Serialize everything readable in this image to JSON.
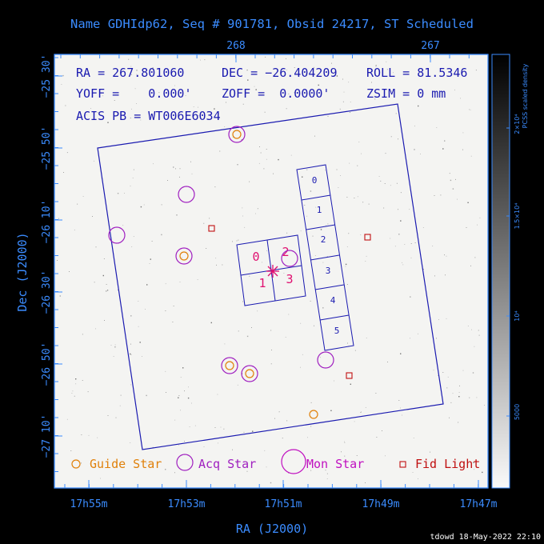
{
  "title": "Name GDHIdp62, Seq # 901781, Obsid 24217, ST Scheduled",
  "info": {
    "ra": "RA = 267.801060",
    "dec": "DEC = −26.404209",
    "roll": "ROLL = 81.5346",
    "yoff": "YOFF =    0.000'",
    "zoff": "ZOFF =  0.0000'",
    "zsim": "ZSIM = 0 mm",
    "acis": "ACIS PB = WT006E6034"
  },
  "top_axis": [
    "268",
    "267"
  ],
  "left_axis": [
    "−25 30'",
    "−25 50'",
    "−26 10'",
    "−26 30'",
    "−26 50'",
    "−27 10'"
  ],
  "bottom_axis": [
    "17h55m",
    "17h53m",
    "17h51m",
    "17h49m",
    "17h47m"
  ],
  "x_label": "RA (J2000)",
  "y_label": "Dec (J2000)",
  "colorbar": {
    "label": "PCSS scaled density",
    "ticks": [
      "2×10⁴",
      "1.5×10⁴",
      "10⁴",
      "5000"
    ]
  },
  "ccd_i": [
    "0",
    "1",
    "2",
    "3"
  ],
  "ccd_s": [
    "0",
    "1",
    "2",
    "3",
    "4",
    "5"
  ],
  "legend": {
    "guide": "Guide Star",
    "acq": "Acq Star",
    "mon": "Mon Star",
    "fid": "Fid Light"
  },
  "footer": "tdowd 18-May-2022 22:10",
  "colors": {
    "frame": "#3b8cff",
    "detector": "#1a1ab0",
    "guide": "#e0800a",
    "acq": "#a020c0",
    "mon": "#c010c0",
    "fid": "#c01010",
    "ccd_label": "#e01070"
  }
}
